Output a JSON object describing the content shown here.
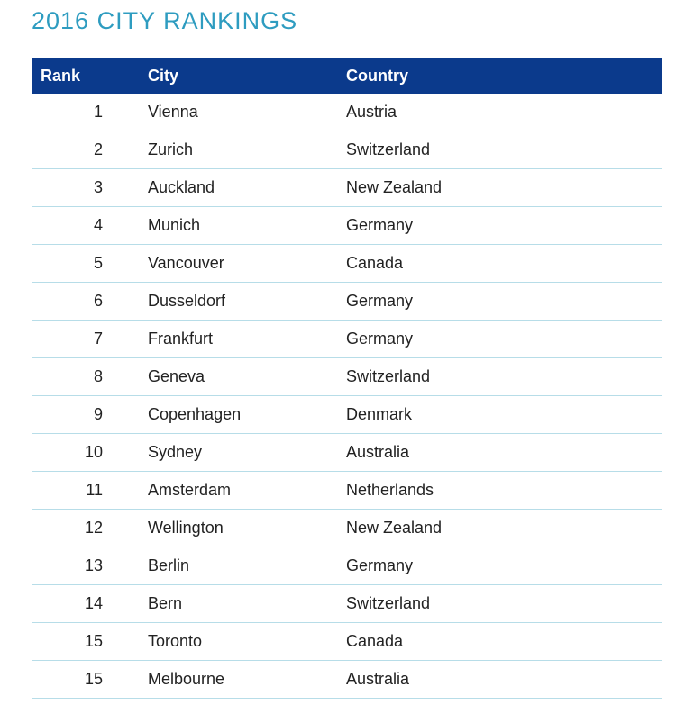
{
  "title": "2016 CITY RANKINGS",
  "table": {
    "headers": {
      "rank": "Rank",
      "city": "City",
      "country": "Country"
    },
    "rows": [
      {
        "rank": "1",
        "city": "Vienna",
        "country": "Austria"
      },
      {
        "rank": "2",
        "city": "Zurich",
        "country": "Switzerland"
      },
      {
        "rank": "3",
        "city": "Auckland",
        "country": "New Zealand"
      },
      {
        "rank": "4",
        "city": "Munich",
        "country": "Germany"
      },
      {
        "rank": "5",
        "city": "Vancouver",
        "country": "Canada"
      },
      {
        "rank": "6",
        "city": "Dusseldorf",
        "country": "Germany"
      },
      {
        "rank": "7",
        "city": "Frankfurt",
        "country": "Germany"
      },
      {
        "rank": "8",
        "city": "Geneva",
        "country": "Switzerland"
      },
      {
        "rank": "9",
        "city": "Copenhagen",
        "country": "Denmark"
      },
      {
        "rank": "10",
        "city": "Sydney",
        "country": "Australia"
      },
      {
        "rank": "11",
        "city": "Amsterdam",
        "country": "Netherlands"
      },
      {
        "rank": "12",
        "city": "Wellington",
        "country": "New Zealand"
      },
      {
        "rank": "13",
        "city": "Berlin",
        "country": "Germany"
      },
      {
        "rank": "14",
        "city": "Bern",
        "country": "Switzerland"
      },
      {
        "rank": "15",
        "city": "Toronto",
        "country": "Canada"
      },
      {
        "rank": "15",
        "city": "Melbourne",
        "country": "Australia"
      }
    ]
  },
  "colors": {
    "title": "#2e9cc0",
    "header_background": "#0b3a8c",
    "row_divider": "#b7dde8"
  }
}
